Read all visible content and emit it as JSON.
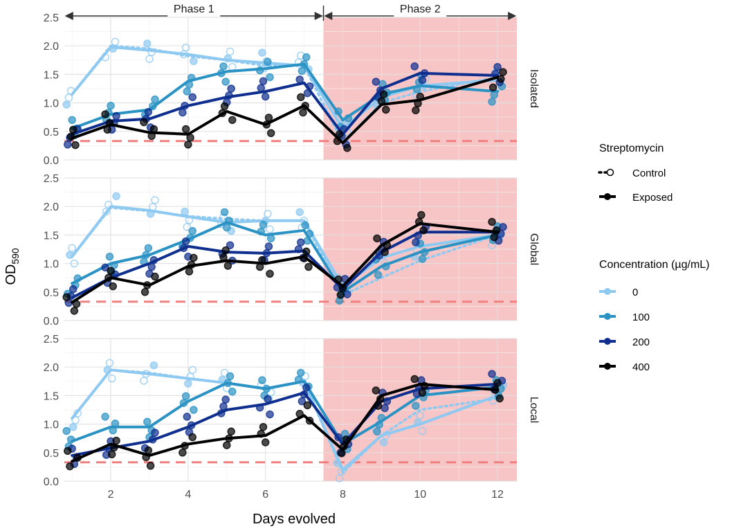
{
  "chart_data": {
    "type": "line",
    "xlabel": "Days evolved",
    "ylabel_main": "OD",
    "ylabel_sub": "590",
    "x_ticks": [
      2,
      4,
      6,
      8,
      10,
      12
    ],
    "x_range": [
      0.8,
      12.5
    ],
    "y_ticks": [
      "0.0",
      "0.5",
      "1.0",
      "1.5",
      "2.0",
      "2.5"
    ],
    "y_range": [
      0,
      2.5
    ],
    "threshold": 0.33,
    "phase2_start": 7.5,
    "phases": [
      {
        "label": "Phase 1",
        "from": 0.8,
        "to": 7.5
      },
      {
        "label": "Phase 2",
        "from": 7.5,
        "to": 12.5
      }
    ],
    "days": [
      1,
      2,
      3,
      4,
      5,
      6,
      7,
      8,
      9,
      10,
      12
    ],
    "panels": [
      {
        "label": "Isolated",
        "series": [
          {
            "concentration": "0",
            "exposed": [
              1.15,
              1.98,
              1.92,
              1.85,
              1.75,
              1.7,
              1.65,
              0.55,
              1.1,
              1.3,
              1.4
            ],
            "control": [
              1.15,
              2.0,
              1.95,
              1.82,
              1.75,
              1.65,
              1.65,
              0.3,
              1.0,
              1.2,
              1.45
            ]
          },
          {
            "concentration": "100",
            "exposed": [
              0.55,
              0.8,
              0.88,
              1.38,
              1.55,
              1.6,
              1.68,
              0.7,
              1.15,
              1.3,
              1.2
            ]
          },
          {
            "concentration": "200",
            "exposed": [
              0.45,
              0.68,
              0.72,
              0.95,
              1.1,
              1.2,
              1.35,
              0.45,
              1.25,
              1.52,
              1.48
            ]
          },
          {
            "concentration": "400",
            "exposed": [
              0.38,
              0.62,
              0.48,
              0.45,
              0.85,
              0.62,
              0.95,
              0.3,
              0.97,
              1.05,
              1.45
            ]
          }
        ]
      },
      {
        "label": "Global",
        "series": [
          {
            "concentration": "0",
            "exposed": [
              1.12,
              2.0,
              1.93,
              1.82,
              1.72,
              1.75,
              1.75,
              0.6,
              1.1,
              1.3,
              1.5
            ],
            "control": [
              1.12,
              1.98,
              1.92,
              1.83,
              1.78,
              1.75,
              1.75,
              0.45,
              0.75,
              1.05,
              1.5
            ]
          },
          {
            "concentration": "100",
            "exposed": [
              0.65,
              1.0,
              1.15,
              1.42,
              1.72,
              1.5,
              1.58,
              0.5,
              0.95,
              1.2,
              1.5
            ]
          },
          {
            "concentration": "200",
            "exposed": [
              0.4,
              0.75,
              1.0,
              1.3,
              1.2,
              1.18,
              1.22,
              0.55,
              1.2,
              1.55,
              1.55
            ]
          },
          {
            "concentration": "400",
            "exposed": [
              0.32,
              0.75,
              0.62,
              0.95,
              1.05,
              1.0,
              1.12,
              0.6,
              1.32,
              1.7,
              1.55
            ]
          }
        ]
      },
      {
        "label": "Local",
        "series": [
          {
            "concentration": "0",
            "exposed": [
              1.1,
              1.95,
              1.88,
              1.8,
              1.72,
              1.62,
              1.75,
              0.2,
              0.8,
              1.0,
              1.5
            ],
            "control": [
              1.1,
              1.95,
              1.9,
              1.8,
              1.72,
              1.62,
              1.75,
              0.15,
              0.8,
              1.25,
              1.45
            ]
          },
          {
            "concentration": "100",
            "exposed": [
              0.7,
              0.95,
              0.95,
              1.4,
              1.72,
              1.62,
              1.75,
              0.65,
              1.05,
              1.5,
              1.65
            ]
          },
          {
            "concentration": "200",
            "exposed": [
              0.45,
              0.58,
              0.7,
              0.95,
              1.25,
              1.35,
              1.55,
              0.65,
              1.4,
              1.62,
              1.7
            ]
          },
          {
            "concentration": "400",
            "exposed": [
              0.35,
              0.65,
              0.45,
              0.65,
              0.75,
              0.8,
              1.15,
              0.55,
              1.5,
              1.7,
              1.6
            ]
          }
        ]
      }
    ],
    "legend": {
      "streptomycin_title": "Streptomycin",
      "streptomycin_items": [
        "Control",
        "Exposed"
      ],
      "concentration_title": "Concentration  (µg/mL)",
      "concentration_items": [
        {
          "label": "0",
          "color": "#8ec9f2"
        },
        {
          "label": "100",
          "color": "#2b93c4"
        },
        {
          "label": "200",
          "color": "#0f2f8f"
        },
        {
          "label": "400",
          "color": "#000000"
        }
      ]
    },
    "colors": {
      "phase2_bg": "#f7c5c5",
      "threshold_line": "#f08080",
      "panel_bg": "#ffffff",
      "grid": "#e3e3e3"
    }
  }
}
